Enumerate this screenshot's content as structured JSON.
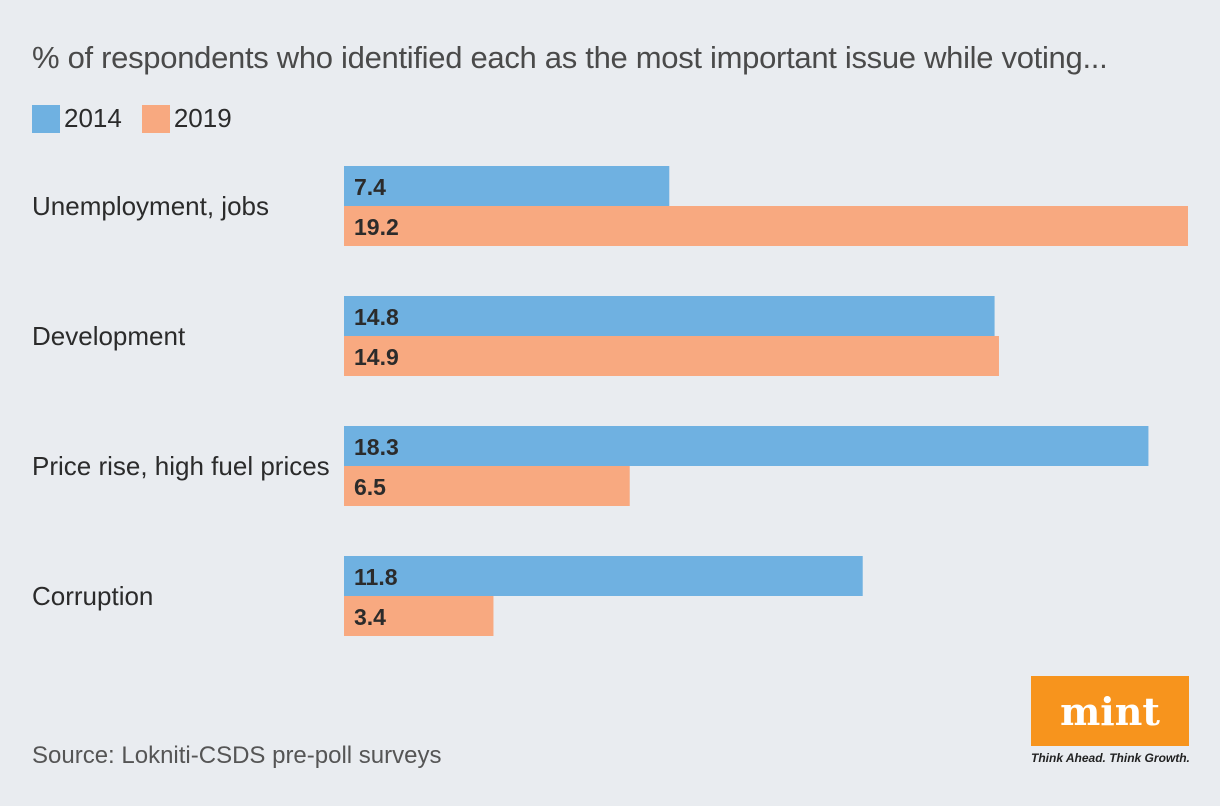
{
  "title": "% of respondents who identified each as the most important issue while voting...",
  "source": "Source: Lokniti-CSDS pre-poll surveys",
  "logo": {
    "text": "mint",
    "tagline": "Think Ahead. Think Growth."
  },
  "colors": {
    "2014": "#6fb1e1",
    "2019": "#f8a980",
    "logo": "#f7941d"
  },
  "chart_data": {
    "type": "bar",
    "orientation": "horizontal",
    "categories": [
      "Unemployment, jobs",
      "Development",
      "Price rise, high fuel prices",
      "Corruption"
    ],
    "series": [
      {
        "name": "2014",
        "values": [
          7.4,
          14.8,
          18.3,
          11.8
        ],
        "color": "#6fb1e1"
      },
      {
        "name": "2019",
        "values": [
          19.2,
          14.9,
          6.5,
          3.4
        ],
        "color": "#f8a980"
      }
    ],
    "xlim": [
      0,
      19.2
    ],
    "legend": "top-left",
    "grid": false
  }
}
